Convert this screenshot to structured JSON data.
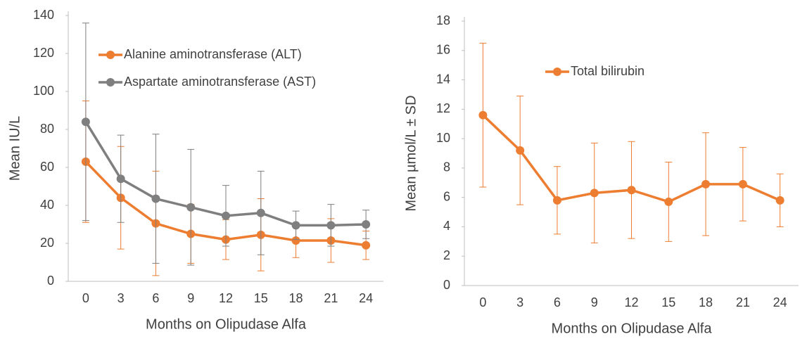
{
  "chart_data": [
    {
      "type": "line",
      "x_label": "Months on Olipudase Alfa",
      "y_label": "Mean IU/L",
      "categories": [
        0,
        3,
        6,
        9,
        12,
        15,
        18,
        21,
        24
      ],
      "ylim": [
        0,
        140
      ],
      "yticks": [
        0,
        20,
        40,
        60,
        80,
        100,
        120,
        140
      ],
      "legend": "upper left",
      "series": [
        {
          "name": "Alanine aminotransferase (ALT)",
          "color": "#ED7D31",
          "values": [
            63,
            44,
            30.5,
            25,
            22,
            24.5,
            21.5,
            21.5,
            19
          ],
          "errors": [
            32,
            27,
            27.5,
            15.5,
            10.5,
            19,
            9,
            11.5,
            7.5
          ]
        },
        {
          "name": "Aspartate aminotransferase (AST)",
          "color": "#7F7F7F",
          "values": [
            84,
            54,
            43.5,
            39,
            34.5,
            36,
            29.5,
            29.5,
            30
          ],
          "errors": [
            52,
            23,
            34,
            30.5,
            16,
            22,
            7.5,
            11,
            7.5
          ]
        }
      ]
    },
    {
      "type": "line",
      "x_label": "Months on Olipudase Alfa",
      "y_label": "Mean µmol/L ± SD",
      "categories": [
        0,
        3,
        6,
        9,
        12,
        15,
        18,
        21,
        24
      ],
      "ylim": [
        0,
        18
      ],
      "yticks": [
        0,
        2,
        4,
        6,
        8,
        10,
        12,
        14,
        16,
        18
      ],
      "legend": "upper left",
      "series": [
        {
          "name": "Total bilirubin",
          "color": "#ED7D31",
          "values": [
            11.6,
            9.2,
            5.8,
            6.3,
            6.5,
            5.7,
            6.9,
            6.9,
            5.8
          ],
          "errors": [
            4.9,
            3.7,
            2.3,
            3.4,
            3.3,
            2.7,
            3.5,
            2.5,
            1.8
          ]
        }
      ]
    }
  ]
}
